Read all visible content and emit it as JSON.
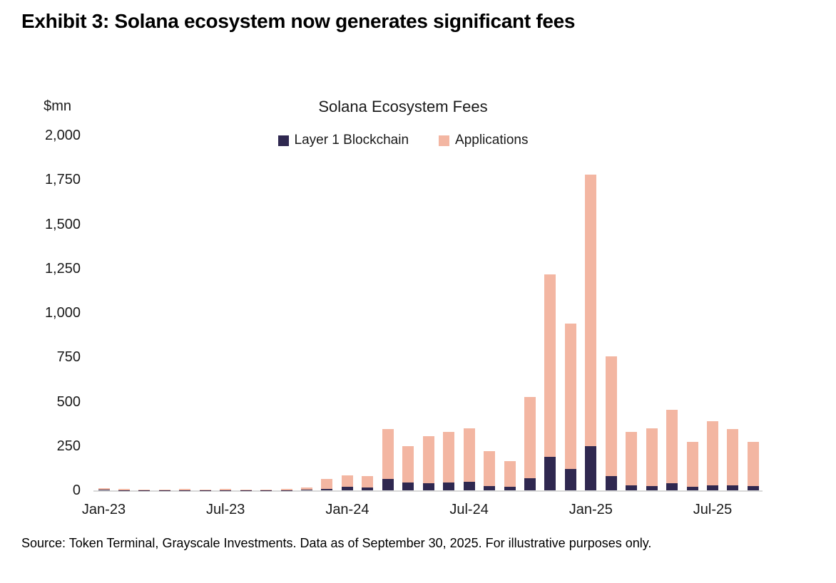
{
  "exhibit_title": "Exhibit 3: Solana ecosystem now generates significant fees",
  "source_note": "Source: Token Terminal, Grayscale Investments. Data as of September 30, 2025. For illustrative purposes only.",
  "chart_data": {
    "type": "bar",
    "stacked": true,
    "title": "Solana Ecosystem Fees",
    "unit_label": "$mn",
    "xlabel": "",
    "ylabel": "$mn",
    "ylim": [
      0,
      2000
    ],
    "grid": false,
    "legend_position": "top-center",
    "yticks": [
      0,
      250,
      500,
      750,
      1000,
      1250,
      1500,
      1750,
      2000
    ],
    "xticks": [
      {
        "label": "Jan-23",
        "month_index": 0
      },
      {
        "label": "Jul-23",
        "month_index": 6
      },
      {
        "label": "Jan-24",
        "month_index": 12
      },
      {
        "label": "Jul-24",
        "month_index": 18
      },
      {
        "label": "Jan-25",
        "month_index": 24
      },
      {
        "label": "Jul-25",
        "month_index": 30
      }
    ],
    "categories": [
      "Jan-23",
      "Feb-23",
      "Mar-23",
      "Apr-23",
      "May-23",
      "Jun-23",
      "Jul-23",
      "Aug-23",
      "Sep-23",
      "Oct-23",
      "Nov-23",
      "Dec-23",
      "Jan-24",
      "Feb-24",
      "Mar-24",
      "Apr-24",
      "May-24",
      "Jun-24",
      "Jul-24",
      "Aug-24",
      "Sep-24",
      "Oct-24",
      "Nov-24",
      "Dec-24",
      "Jan-25",
      "Feb-25",
      "Mar-25",
      "Apr-25",
      "May-25",
      "Jun-25",
      "Jul-25",
      "Aug-25",
      "Sep-25"
    ],
    "series": [
      {
        "name": "Layer 1 Blockchain",
        "color": "#2f2850",
        "values": [
          3,
          2,
          1,
          1,
          2,
          1,
          2,
          1,
          1,
          2,
          3,
          10,
          20,
          15,
          65,
          45,
          40,
          45,
          50,
          25,
          20,
          70,
          190,
          120,
          250,
          80,
          28,
          25,
          40,
          20,
          30,
          30,
          25
        ]
      },
      {
        "name": "Applications",
        "color": "#f3b6a2",
        "values": [
          9,
          6,
          5,
          5,
          6,
          5,
          5,
          4,
          3,
          6,
          15,
          55,
          65,
          65,
          280,
          205,
          265,
          285,
          300,
          195,
          145,
          455,
          1025,
          820,
          1530,
          675,
          302,
          325,
          415,
          255,
          360,
          315,
          250
        ]
      }
    ],
    "colors": {
      "axis_line": "#d8d8d8",
      "text": "#1a1a1a"
    }
  }
}
